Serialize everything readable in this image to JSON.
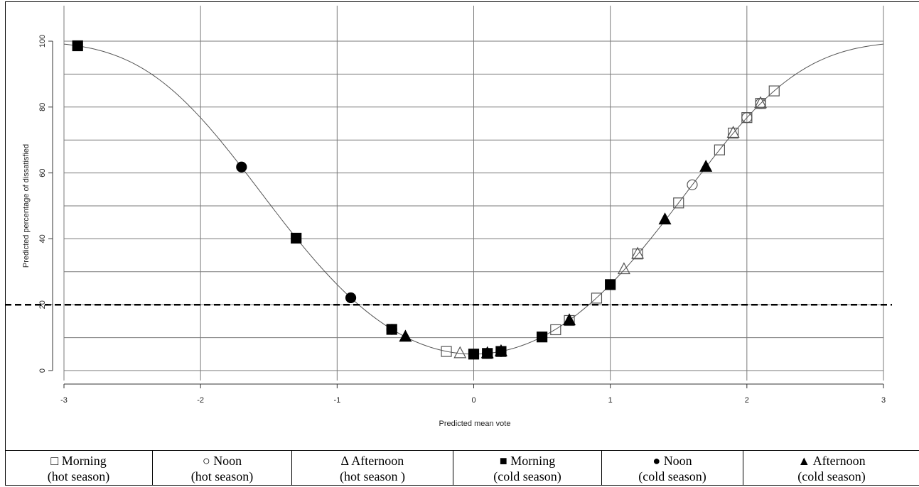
{
  "chart_data": {
    "type": "scatter",
    "title": "",
    "xlabel": "Predicted mean vote",
    "ylabel": "Predicted percentage of dissatisfied",
    "xlim": [
      -3,
      3
    ],
    "ylim": [
      0,
      100
    ],
    "x_ticks": [
      "-3",
      "-2",
      "-1",
      "0",
      "1",
      "2",
      "3"
    ],
    "y_ticks": [
      "0",
      "20",
      "40",
      "60",
      "80",
      "100"
    ],
    "grid": true,
    "threshold": {
      "y": 20,
      "style": "dashed"
    },
    "curve": {
      "formula": "PPD = 100 - 95*exp(-0.03353*PMV^4 - 0.2179*PMV^2)"
    },
    "series": [
      {
        "key": "morning-hot",
        "marker": "square-open",
        "symbol": "□",
        "label_line1": "Morning",
        "label_line2": "(hot season)",
        "points": [
          [
            -0.2,
            5.8
          ],
          [
            0.6,
            12.4
          ],
          [
            0.7,
            15.2
          ],
          [
            0.9,
            22.0
          ],
          [
            1.2,
            35.4
          ],
          [
            1.5,
            50.9
          ],
          [
            1.8,
            67.0
          ],
          [
            1.9,
            72.1
          ],
          [
            2.0,
            76.8
          ],
          [
            2.1,
            81.1
          ],
          [
            2.2,
            84.9
          ]
        ]
      },
      {
        "key": "noon-hot",
        "marker": "circle-open",
        "symbol": "○",
        "label_line1": "Noon",
        "label_line2": "(hot season)",
        "points": [
          [
            1.6,
            56.4
          ],
          [
            2.0,
            76.8
          ],
          [
            2.1,
            81.1
          ]
        ]
      },
      {
        "key": "afternoon-hot",
        "marker": "triangle-open",
        "symbol": "∆",
        "label_line1": "Afternoon",
        "label_line2": "(hot season )",
        "points": [
          [
            -0.1,
            5.2
          ],
          [
            1.1,
            30.7
          ],
          [
            1.2,
            35.4
          ],
          [
            1.9,
            72.1
          ],
          [
            2.1,
            81.1
          ]
        ]
      },
      {
        "key": "morning-cold",
        "marker": "square-filled",
        "symbol": "■",
        "label_line1": "Morning",
        "label_line2": "(cold season)",
        "points": [
          [
            -2.9,
            98.6
          ],
          [
            -1.3,
            40.2
          ],
          [
            -0.6,
            12.5
          ],
          [
            0.0,
            5.0
          ],
          [
            0.1,
            5.2
          ],
          [
            0.2,
            5.8
          ],
          [
            0.5,
            10.2
          ],
          [
            1.0,
            26.1
          ]
        ]
      },
      {
        "key": "noon-cold",
        "marker": "circle-filled",
        "symbol": "●",
        "label_line1": "Noon",
        "label_line2": "(cold season)",
        "points": [
          [
            -1.7,
            61.8
          ],
          [
            -0.9,
            22.1
          ],
          [
            -0.6,
            12.5
          ],
          [
            0.1,
            5.2
          ],
          [
            0.2,
            5.8
          ]
        ]
      },
      {
        "key": "afternoon-cold",
        "marker": "triangle-filled",
        "symbol": "▲",
        "label_line1": "Afternoon",
        "label_line2": "(cold season)",
        "points": [
          [
            -0.5,
            10.2
          ],
          [
            0.1,
            5.2
          ],
          [
            0.2,
            5.8
          ],
          [
            0.7,
            15.2
          ],
          [
            1.4,
            45.8
          ],
          [
            1.7,
            61.8
          ]
        ]
      }
    ]
  }
}
